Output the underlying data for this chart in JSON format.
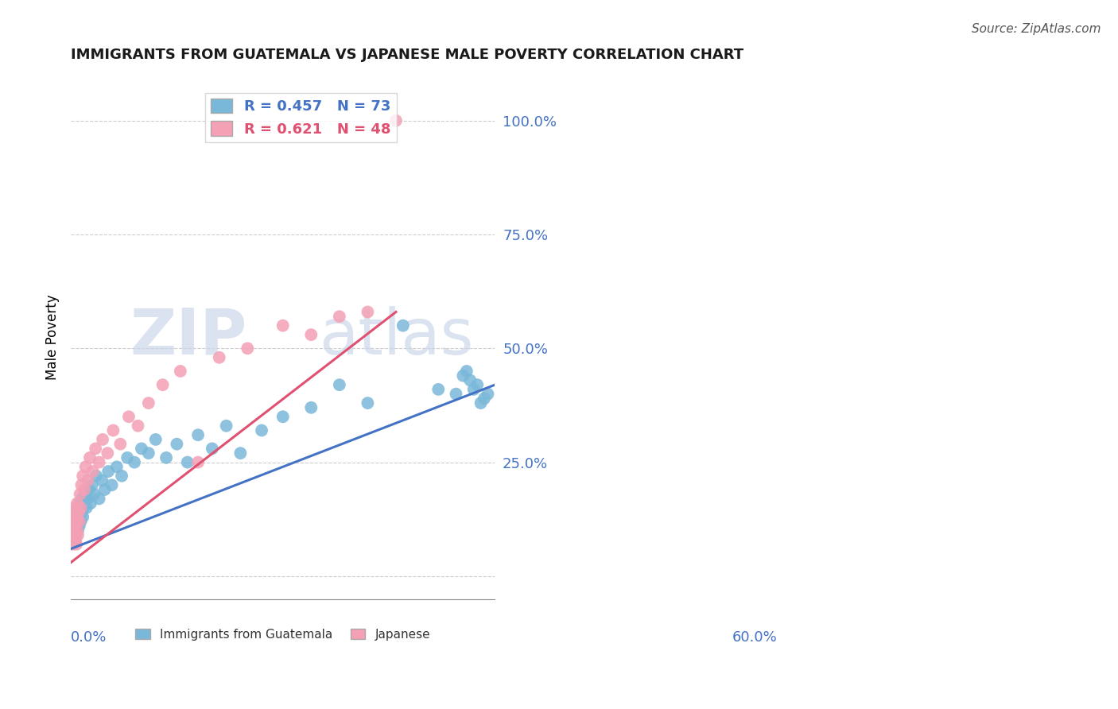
{
  "title": "IMMIGRANTS FROM GUATEMALA VS JAPANESE MALE POVERTY CORRELATION CHART",
  "source_text": "Source: ZipAtlas.com",
  "ylabel": "Male Poverty",
  "xlim": [
    0.0,
    0.6
  ],
  "ylim": [
    -0.05,
    1.1
  ],
  "yticks": [
    0.0,
    0.25,
    0.5,
    0.75,
    1.0
  ],
  "ytick_labels": [
    "",
    "25.0%",
    "50.0%",
    "75.0%",
    "100.0%"
  ],
  "legend_r1": "R = 0.457",
  "legend_n1": "N = 73",
  "legend_r2": "R = 0.621",
  "legend_n2": "N = 48",
  "color_blue": "#7ab8d9",
  "color_pink": "#f4a0b5",
  "color_blue_text": "#4472c4",
  "color_pink_text": "#e05070",
  "watermark_zip": "ZIP",
  "watermark_atlas": "atlas",
  "blue_scatter_x": [
    0.001,
    0.002,
    0.002,
    0.003,
    0.003,
    0.004,
    0.004,
    0.005,
    0.005,
    0.006,
    0.006,
    0.007,
    0.007,
    0.008,
    0.008,
    0.009,
    0.009,
    0.01,
    0.01,
    0.011,
    0.011,
    0.012,
    0.012,
    0.013,
    0.014,
    0.015,
    0.016,
    0.017,
    0.018,
    0.019,
    0.02,
    0.022,
    0.024,
    0.026,
    0.028,
    0.03,
    0.033,
    0.036,
    0.04,
    0.044,
    0.048,
    0.053,
    0.058,
    0.065,
    0.072,
    0.08,
    0.09,
    0.1,
    0.11,
    0.12,
    0.135,
    0.15,
    0.165,
    0.18,
    0.2,
    0.22,
    0.24,
    0.27,
    0.3,
    0.34,
    0.38,
    0.42,
    0.47,
    0.52,
    0.545,
    0.555,
    0.56,
    0.565,
    0.57,
    0.575,
    0.58,
    0.585,
    0.59
  ],
  "blue_scatter_y": [
    0.1,
    0.09,
    0.12,
    0.11,
    0.13,
    0.08,
    0.14,
    0.1,
    0.12,
    0.09,
    0.11,
    0.13,
    0.1,
    0.12,
    0.14,
    0.11,
    0.13,
    0.1,
    0.15,
    0.12,
    0.14,
    0.11,
    0.16,
    0.13,
    0.12,
    0.14,
    0.17,
    0.13,
    0.15,
    0.16,
    0.18,
    0.15,
    0.17,
    0.19,
    0.16,
    0.2,
    0.18,
    0.22,
    0.17,
    0.21,
    0.19,
    0.23,
    0.2,
    0.24,
    0.22,
    0.26,
    0.25,
    0.28,
    0.27,
    0.3,
    0.26,
    0.29,
    0.25,
    0.31,
    0.28,
    0.33,
    0.27,
    0.32,
    0.35,
    0.37,
    0.42,
    0.38,
    0.55,
    0.41,
    0.4,
    0.44,
    0.45,
    0.43,
    0.41,
    0.42,
    0.38,
    0.39,
    0.4
  ],
  "pink_scatter_x": [
    0.001,
    0.002,
    0.002,
    0.003,
    0.003,
    0.004,
    0.004,
    0.005,
    0.005,
    0.006,
    0.006,
    0.007,
    0.007,
    0.008,
    0.008,
    0.009,
    0.009,
    0.01,
    0.011,
    0.012,
    0.013,
    0.014,
    0.015,
    0.017,
    0.019,
    0.021,
    0.024,
    0.027,
    0.031,
    0.035,
    0.04,
    0.045,
    0.052,
    0.06,
    0.07,
    0.082,
    0.095,
    0.11,
    0.13,
    0.155,
    0.18,
    0.21,
    0.25,
    0.3,
    0.34,
    0.38,
    0.42,
    0.46
  ],
  "pink_scatter_y": [
    0.09,
    0.08,
    0.13,
    0.07,
    0.11,
    0.09,
    0.14,
    0.08,
    0.12,
    0.1,
    0.15,
    0.08,
    0.13,
    0.07,
    0.12,
    0.1,
    0.16,
    0.09,
    0.14,
    0.12,
    0.18,
    0.15,
    0.2,
    0.22,
    0.19,
    0.24,
    0.21,
    0.26,
    0.23,
    0.28,
    0.25,
    0.3,
    0.27,
    0.32,
    0.29,
    0.35,
    0.33,
    0.38,
    0.42,
    0.45,
    0.25,
    0.48,
    0.5,
    0.55,
    0.53,
    0.57,
    0.58,
    1.0
  ],
  "blue_line_x": [
    0.0,
    0.6
  ],
  "blue_line_y": [
    0.06,
    0.42
  ],
  "pink_line_x": [
    0.0,
    0.46
  ],
  "pink_line_y": [
    0.03,
    0.58
  ],
  "grid_color": "#cccccc",
  "bg_color": "#ffffff"
}
